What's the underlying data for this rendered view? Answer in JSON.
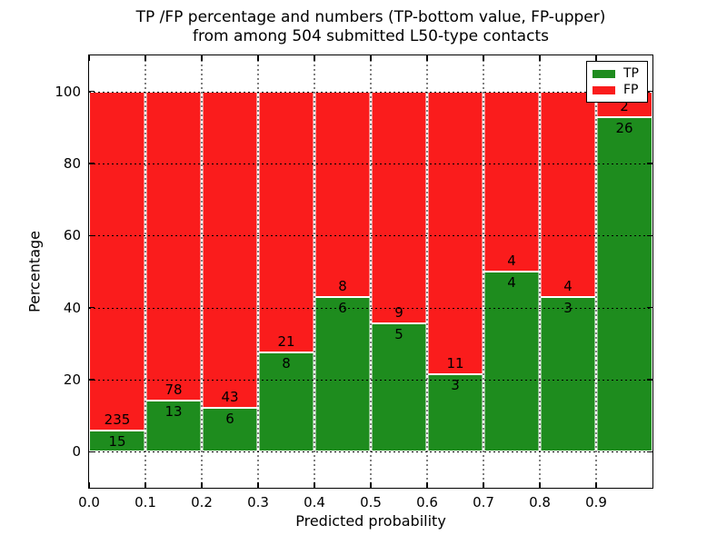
{
  "figure": {
    "title_line1": "TP /FP percentage and numbers (TP-bottom value, FP-upper)",
    "title_line2": "from among 504 submitted L50-type contacts",
    "xlabel": "Predicted probability",
    "ylabel": "Percentage"
  },
  "legend": {
    "position": "upper-right",
    "entries": [
      {
        "label": "TP",
        "color": "#1e8c1e"
      },
      {
        "label": "FP",
        "color": "#fa1c1c"
      }
    ]
  },
  "chart_data": {
    "type": "bar",
    "stacked": true,
    "normalized_to": 100,
    "title": "TP /FP percentage and numbers (TP-bottom value, FP-upper) from among 504 submitted L50-type contacts",
    "xlabel": "Predicted probability",
    "ylabel": "Percentage",
    "total_submitted": 504,
    "bin_width": 0.1,
    "x_bin_starts": [
      0.0,
      0.1,
      0.2,
      0.3,
      0.4,
      0.5,
      0.6,
      0.7,
      0.8,
      0.9
    ],
    "x_tick_labels": [
      "0.0",
      "0.1",
      "0.2",
      "0.3",
      "0.4",
      "0.5",
      "0.6",
      "0.7",
      "0.8",
      "0.9"
    ],
    "y_ticks": [
      0,
      20,
      40,
      60,
      80,
      100
    ],
    "xlim": [
      0,
      1
    ],
    "ylim": [
      -10,
      110
    ],
    "grid": true,
    "series": [
      {
        "name": "TP",
        "color": "#1e8c1e",
        "counts": [
          15,
          13,
          6,
          8,
          6,
          5,
          3,
          4,
          3,
          26
        ]
      },
      {
        "name": "FP",
        "color": "#fa1c1c",
        "counts": [
          235,
          78,
          43,
          21,
          8,
          9,
          11,
          4,
          4,
          2
        ]
      }
    ],
    "tp_percentages": [
      6.0,
      14.29,
      12.24,
      27.59,
      42.86,
      35.71,
      21.43,
      50.0,
      42.86,
      92.86
    ]
  }
}
